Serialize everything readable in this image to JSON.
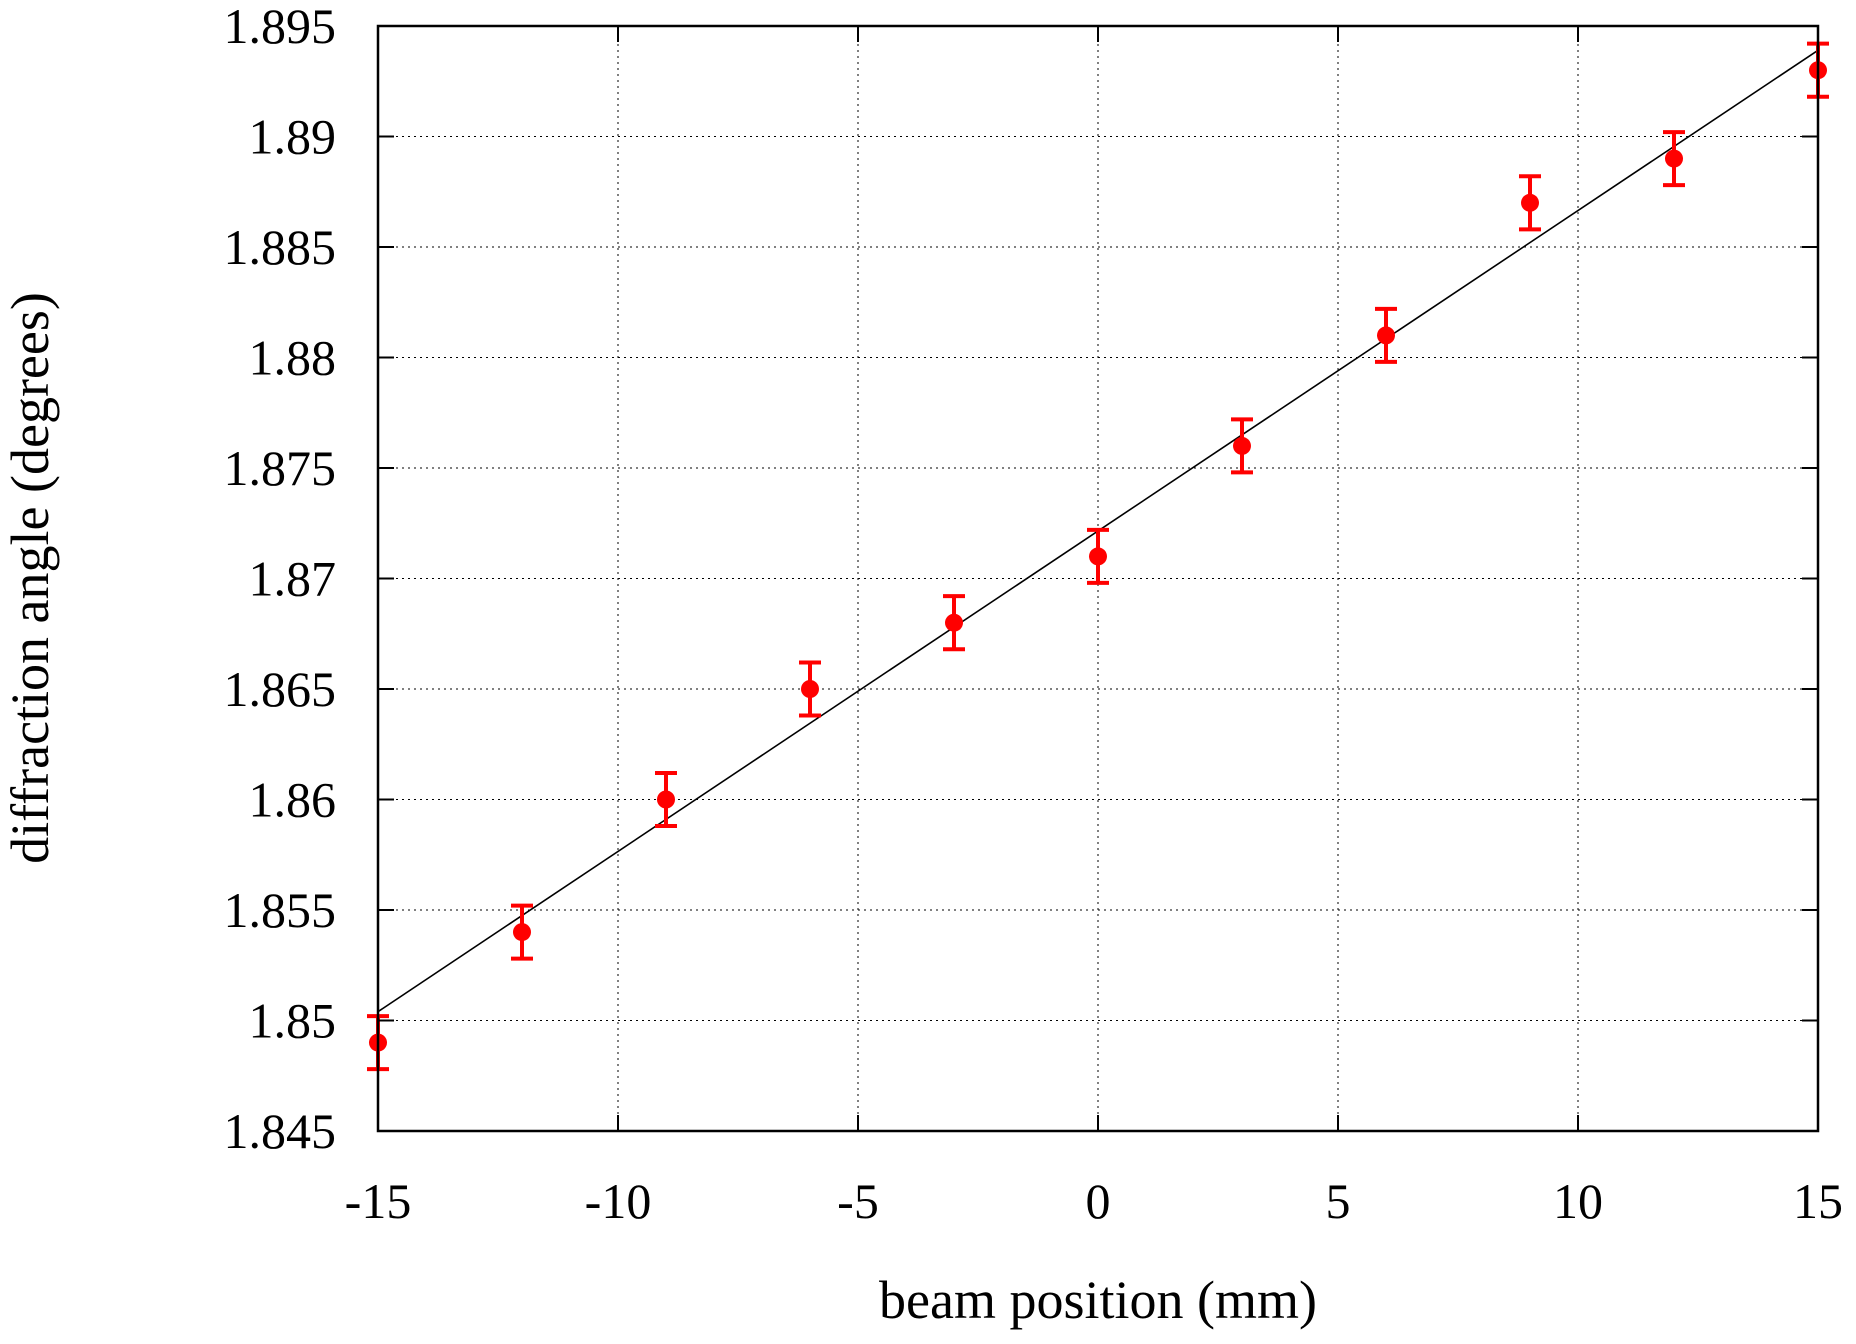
{
  "chart_data": {
    "type": "scatter",
    "xlabel": "beam position (mm)",
    "ylabel": "diffraction angle (degrees)",
    "xlim": [
      -15,
      15
    ],
    "ylim": [
      1.845,
      1.895
    ],
    "x_ticks": [
      -15,
      -10,
      -5,
      0,
      5,
      10,
      15
    ],
    "y_ticks": [
      1.845,
      1.85,
      1.855,
      1.86,
      1.865,
      1.87,
      1.875,
      1.88,
      1.885,
      1.89,
      1.895
    ],
    "x_tick_labels": [
      "-15",
      "-10",
      "-5",
      "0",
      "5",
      "10",
      "15"
    ],
    "y_tick_labels": [
      "1.845",
      "1.85",
      "1.855",
      "1.86",
      "1.865",
      "1.87",
      "1.875",
      "1.88",
      "1.885",
      "1.89",
      "1.895"
    ],
    "grid": true,
    "series": [
      {
        "kind": "points-with-errorbars",
        "color": "#ff0000",
        "x": [
          -15,
          -12,
          -9,
          -6,
          -3,
          0,
          3,
          6,
          9,
          12,
          15
        ],
        "y": [
          1.849,
          1.854,
          1.86,
          1.865,
          1.868,
          1.871,
          1.876,
          1.881,
          1.887,
          1.889,
          1.893
        ],
        "yerr": [
          0.0012,
          0.0012,
          0.0012,
          0.0012,
          0.0012,
          0.0012,
          0.0012,
          0.0012,
          0.0012,
          0.0012,
          0.0012
        ]
      },
      {
        "kind": "fit-line",
        "color": "#000000",
        "x": [
          -15,
          15
        ],
        "y": [
          1.8504,
          1.8939
        ]
      }
    ]
  }
}
